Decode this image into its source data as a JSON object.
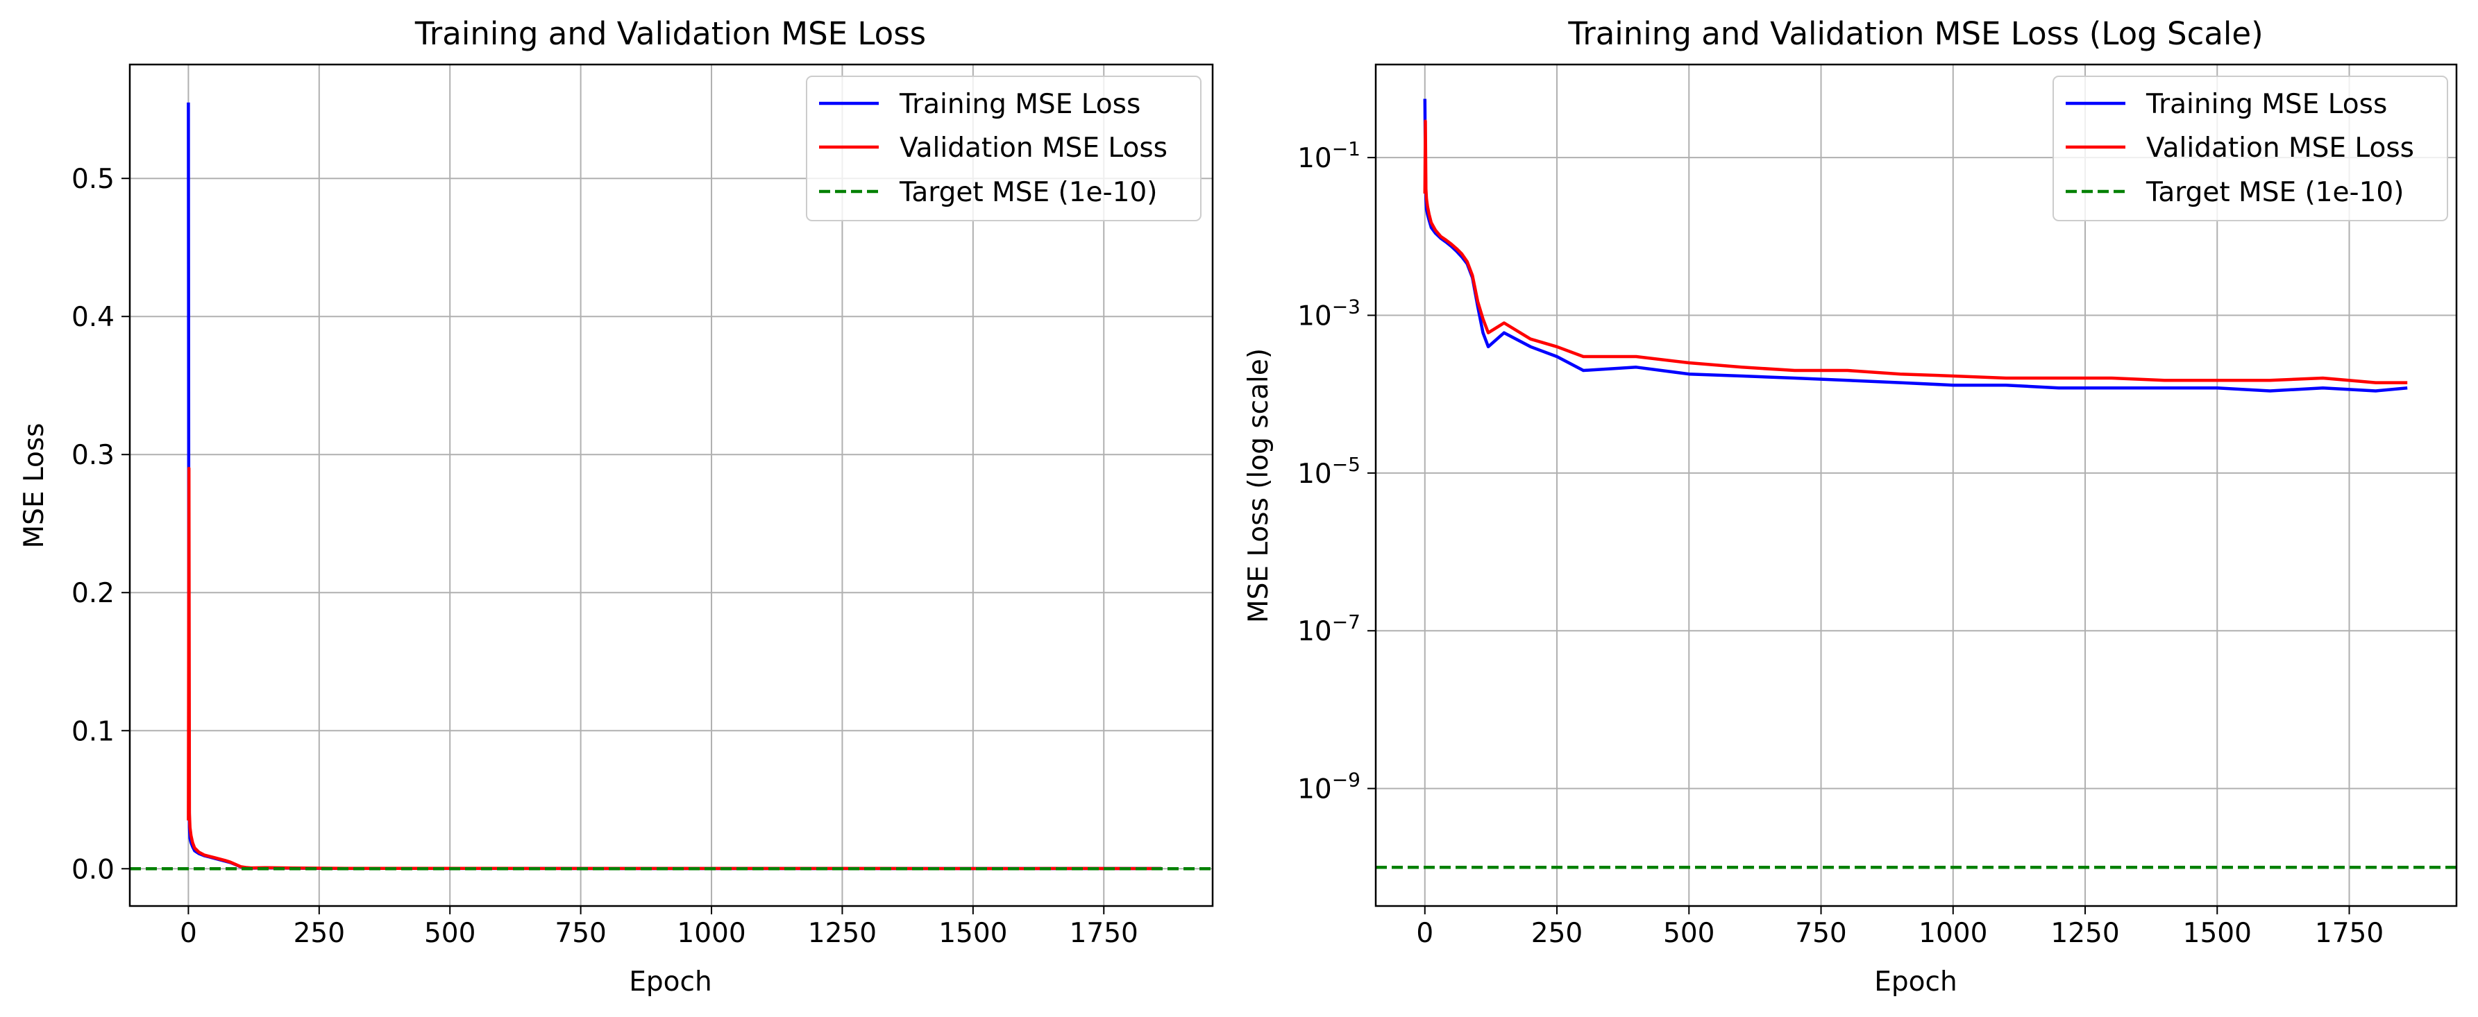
{
  "chart_data": [
    {
      "type": "line",
      "title": "Training and Validation MSE Loss",
      "xlabel": "Epoch",
      "ylabel": "MSE Loss",
      "xlim": [
        -112,
        1958
      ],
      "ylim": [
        -0.027,
        0.5825
      ],
      "yscale": "linear",
      "grid": true,
      "legend_position": "top-right",
      "xticks": [
        0,
        250,
        500,
        750,
        1000,
        1250,
        1500,
        1750
      ],
      "xtick_labels": [
        "0",
        "250",
        "500",
        "750",
        "1000",
        "1250",
        "1500",
        "1750"
      ],
      "yticks": [
        0.0,
        0.1,
        0.2,
        0.3,
        0.4,
        0.5
      ],
      "ytick_labels": [
        "0.0",
        "0.1",
        "0.2",
        "0.3",
        "0.4",
        "0.5"
      ],
      "series": [
        {
          "name": "Training MSE Loss",
          "color": "#0000ff",
          "style": "solid",
          "x": [
            0,
            1,
            2,
            3,
            5,
            8,
            12,
            20,
            30,
            40,
            50,
            60,
            70,
            80,
            90,
            100,
            110,
            120,
            150,
            200,
            250,
            300,
            400,
            500,
            600,
            700,
            800,
            900,
            1000,
            1100,
            1200,
            1300,
            1400,
            1500,
            1600,
            1700,
            1800,
            1860
          ],
          "y": [
            0.555,
            0.09,
            0.03,
            0.022,
            0.019,
            0.016,
            0.013,
            0.011,
            0.0095,
            0.0085,
            0.0075,
            0.0065,
            0.0055,
            0.0045,
            0.003,
            0.0013,
            0.0006,
            0.0004,
            0.0006,
            0.0004,
            0.0003,
            0.0002,
            0.00022,
            0.00018,
            0.00017,
            0.00016,
            0.00015,
            0.00014,
            0.00013,
            0.00013,
            0.00012,
            0.00012,
            0.00012,
            0.00012,
            0.00011,
            0.00012,
            0.00011,
            0.00012
          ]
        },
        {
          "name": "Validation MSE Loss",
          "color": "#ff0000",
          "style": "solid",
          "x": [
            0,
            1,
            2,
            3,
            5,
            8,
            12,
            20,
            30,
            40,
            50,
            60,
            70,
            80,
            90,
            100,
            110,
            120,
            150,
            200,
            250,
            300,
            400,
            500,
            600,
            700,
            800,
            900,
            1000,
            1100,
            1200,
            1300,
            1400,
            1500,
            1600,
            1700,
            1800,
            1860
          ],
          "y": [
            0.035,
            0.29,
            0.04,
            0.03,
            0.024,
            0.019,
            0.015,
            0.012,
            0.01,
            0.009,
            0.008,
            0.007,
            0.006,
            0.0048,
            0.0032,
            0.0015,
            0.0009,
            0.0006,
            0.0008,
            0.0005,
            0.0004,
            0.0003,
            0.0003,
            0.00025,
            0.00022,
            0.0002,
            0.0002,
            0.00018,
            0.00017,
            0.00016,
            0.00016,
            0.00016,
            0.00015,
            0.00015,
            0.00015,
            0.00016,
            0.00014,
            0.00014
          ]
        },
        {
          "name": "Target MSE (1e-10)",
          "color": "#008000",
          "style": "dashed",
          "type": "hline",
          "y_value": 1e-10
        }
      ]
    },
    {
      "type": "line",
      "title": "Training and Validation MSE Loss (Log Scale)",
      "xlabel": "Epoch",
      "ylabel": "MSE Loss (log scale)",
      "xlim": [
        -93,
        1953
      ],
      "ylim_log10": [
        -10.49,
        0.18
      ],
      "yscale": "log",
      "grid": true,
      "legend_position": "top-right",
      "xticks": [
        0,
        250,
        500,
        750,
        1000,
        1250,
        1500,
        1750
      ],
      "xtick_labels": [
        "0",
        "250",
        "500",
        "750",
        "1000",
        "1250",
        "1500",
        "1750"
      ],
      "yticks_log10": [
        -1,
        -3,
        -5,
        -7,
        -9
      ],
      "ytick_base": "10",
      "ytick_exponents": [
        "−1",
        "−3",
        "−5",
        "−7",
        "−9"
      ],
      "series": [
        {
          "name": "Training MSE Loss",
          "color": "#0000ff",
          "style": "solid",
          "x": [
            0,
            1,
            2,
            3,
            5,
            8,
            12,
            20,
            30,
            40,
            50,
            60,
            70,
            80,
            90,
            100,
            110,
            120,
            150,
            200,
            250,
            300,
            400,
            500,
            600,
            700,
            800,
            900,
            1000,
            1100,
            1200,
            1300,
            1400,
            1500,
            1600,
            1700,
            1800,
            1860
          ],
          "y": [
            0.555,
            0.09,
            0.03,
            0.022,
            0.019,
            0.016,
            0.013,
            0.011,
            0.0095,
            0.0085,
            0.0075,
            0.0065,
            0.0055,
            0.0045,
            0.003,
            0.0013,
            0.0006,
            0.0004,
            0.0006,
            0.0004,
            0.0003,
            0.0002,
            0.00022,
            0.00018,
            0.00017,
            0.00016,
            0.00015,
            0.00014,
            0.00013,
            0.00013,
            0.00012,
            0.00012,
            0.00012,
            0.00012,
            0.00011,
            0.00012,
            0.00011,
            0.00012
          ]
        },
        {
          "name": "Validation MSE Loss",
          "color": "#ff0000",
          "style": "solid",
          "x": [
            0,
            1,
            2,
            3,
            5,
            8,
            12,
            20,
            30,
            40,
            50,
            60,
            70,
            80,
            90,
            100,
            110,
            120,
            150,
            200,
            250,
            300,
            400,
            500,
            600,
            700,
            800,
            900,
            1000,
            1100,
            1200,
            1300,
            1400,
            1500,
            1600,
            1700,
            1800,
            1860
          ],
          "y": [
            0.035,
            0.29,
            0.04,
            0.03,
            0.024,
            0.019,
            0.015,
            0.012,
            0.01,
            0.009,
            0.008,
            0.007,
            0.006,
            0.0048,
            0.0032,
            0.0015,
            0.0009,
            0.0006,
            0.0008,
            0.0005,
            0.0004,
            0.0003,
            0.0003,
            0.00025,
            0.00022,
            0.0002,
            0.0002,
            0.00018,
            0.00017,
            0.00016,
            0.00016,
            0.00016,
            0.00015,
            0.00015,
            0.00015,
            0.00016,
            0.00014,
            0.00014
          ]
        },
        {
          "name": "Target MSE (1e-10)",
          "color": "#008000",
          "style": "dashed",
          "type": "hline",
          "y_value": 1e-10
        }
      ]
    }
  ]
}
